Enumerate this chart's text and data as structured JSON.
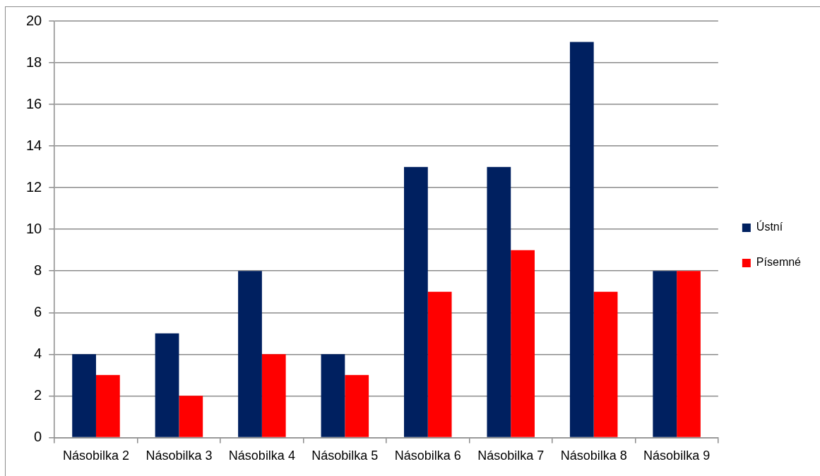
{
  "chart_data": {
    "type": "bar",
    "categories": [
      "Násobilka 2",
      "Násobilka 3",
      "Násobilka 4",
      "Násobilka 5",
      "Násobilka 6",
      "Násobilka 7",
      "Násobilka 8",
      "Násobilka 9"
    ],
    "series": [
      {
        "name": "Ústní",
        "color": "#002060",
        "values": [
          4,
          5,
          8,
          4,
          13,
          13,
          19,
          8
        ]
      },
      {
        "name": "Písemné",
        "color": "#ff0000",
        "values": [
          3,
          2,
          4,
          3,
          7,
          9,
          7,
          8
        ]
      }
    ],
    "ylim": [
      0,
      20
    ],
    "yticks": [
      0,
      2,
      4,
      6,
      8,
      10,
      12,
      14,
      16,
      18,
      20
    ],
    "grid": "y",
    "legend": "right"
  }
}
